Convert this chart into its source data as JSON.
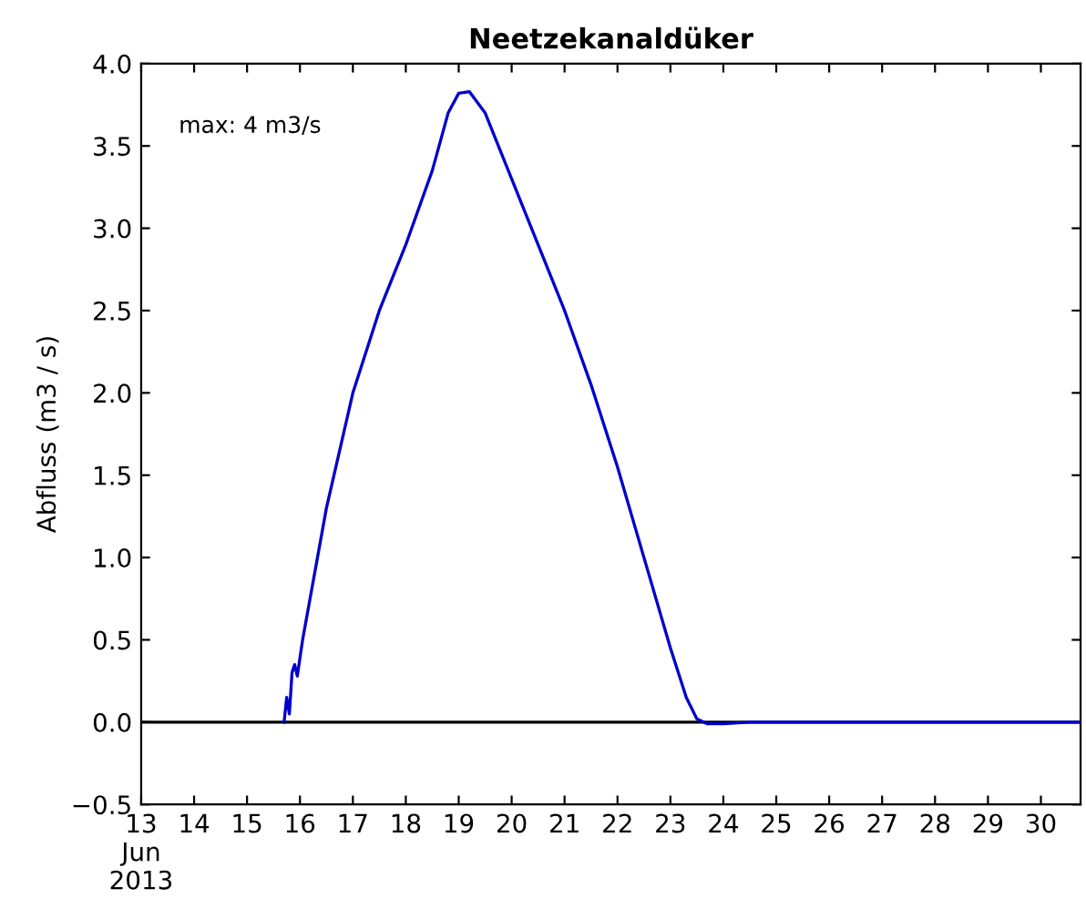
{
  "chart_data": {
    "type": "line",
    "title": "Neetzekanaldüker",
    "ylabel": "Abfluss (m3 / s)",
    "annotations": [
      "max: 4 m3/s"
    ],
    "x": [
      15.7,
      15.75,
      15.8,
      15.85,
      15.9,
      15.95,
      16.05,
      16.5,
      17.0,
      17.5,
      18.0,
      18.5,
      18.8,
      19.0,
      19.2,
      19.5,
      20.0,
      20.5,
      21.0,
      21.5,
      22.0,
      22.5,
      23.0,
      23.3,
      23.5,
      23.7,
      24.0,
      24.5,
      30.75
    ],
    "series": [
      {
        "color": "#0000cc",
        "values": [
          0,
          0.15,
          0.05,
          0.3,
          0.35,
          0.28,
          0.5,
          1.3,
          2.0,
          2.5,
          2.9,
          3.35,
          3.7,
          3.82,
          3.83,
          3.7,
          3.3,
          2.9,
          2.5,
          2.05,
          1.55,
          1.0,
          0.45,
          0.15,
          0.02,
          -0.01,
          -0.01,
          0,
          0
        ]
      }
    ],
    "xlim": [
      13,
      30.75
    ],
    "ylim": [
      -0.5,
      4.0
    ],
    "xticks": [
      {
        "value": 13,
        "label": "13\nJun\n2013"
      },
      14,
      15,
      16,
      17,
      18,
      19,
      20,
      21,
      22,
      23,
      24,
      25,
      26,
      27,
      28,
      29,
      30
    ],
    "yticks": [
      {
        "value": -0.5,
        "label": "−0.5"
      },
      {
        "value": 0.0,
        "label": "0.0"
      },
      {
        "value": 0.5,
        "label": "0.5"
      },
      {
        "value": 1.0,
        "label": "1.0"
      },
      {
        "value": 1.5,
        "label": "1.5"
      },
      {
        "value": 2.0,
        "label": "2.0"
      },
      {
        "value": 2.5,
        "label": "2.5"
      },
      {
        "value": 3.0,
        "label": "3.0"
      },
      {
        "value": 3.5,
        "label": "3.5"
      },
      {
        "value": 4.0,
        "label": "4.0"
      }
    ],
    "ref_lines": [
      {
        "axis": "y",
        "value": 0,
        "color": "#000000"
      }
    ],
    "grid": false,
    "legend": false
  }
}
